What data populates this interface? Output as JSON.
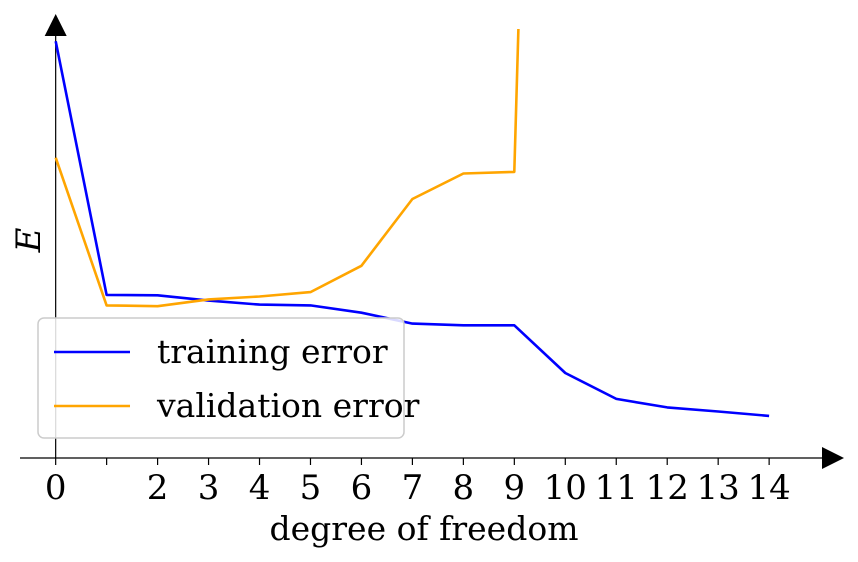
{
  "chart_data": {
    "type": "line",
    "xlabel": "degree of freedom",
    "ylabel": "E",
    "x_ticks": [
      0,
      1,
      2,
      3,
      4,
      5,
      6,
      7,
      8,
      9,
      10,
      11,
      12,
      13,
      14
    ],
    "x_tick_labels": [
      "0",
      "",
      "2",
      "3",
      "4",
      "5",
      "6",
      "7",
      "8",
      "9",
      "10",
      "11",
      "12",
      "13",
      "14"
    ],
    "xlim": [
      -0.7,
      14.9
    ],
    "ylim": [
      0,
      1.07
    ],
    "grid": false,
    "legend_position": "lower-left",
    "series": [
      {
        "name": "training error",
        "color": "#0000ff",
        "x": [
          0,
          1,
          2,
          3,
          4,
          5,
          6,
          7,
          8,
          9,
          10,
          11,
          12,
          13,
          14
        ],
        "y": [
          1.03,
          0.403,
          0.402,
          0.389,
          0.379,
          0.377,
          0.359,
          0.332,
          0.328,
          0.328,
          0.21,
          0.146,
          0.125,
          0.115,
          0.104
        ]
      },
      {
        "name": "validation error",
        "color": "#ffa500",
        "x": [
          0,
          1,
          2,
          3,
          4,
          5,
          6,
          7,
          8,
          9,
          9.08
        ],
        "y": [
          0.742,
          0.377,
          0.375,
          0.392,
          0.399,
          0.41,
          0.475,
          0.64,
          0.703,
          0.707,
          1.06
        ]
      }
    ]
  }
}
